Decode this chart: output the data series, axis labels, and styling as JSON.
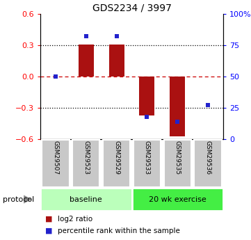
{
  "title": "GDS2234 / 3997",
  "samples": [
    "GSM29507",
    "GSM29523",
    "GSM29529",
    "GSM29533",
    "GSM29535",
    "GSM29536"
  ],
  "log2_ratios": [
    0.0,
    0.305,
    0.305,
    -0.37,
    -0.57,
    0.0
  ],
  "percentile_ranks": [
    50,
    82,
    82,
    18,
    14,
    27
  ],
  "ylim": [
    -0.6,
    0.6
  ],
  "yticks_left": [
    -0.6,
    -0.3,
    0.0,
    0.3,
    0.6
  ],
  "yticks_right_vals": [
    0,
    25,
    50,
    75,
    100
  ],
  "yticks_right_labels": [
    "0",
    "25",
    "50",
    "75",
    "100%"
  ],
  "hlines_dotted": [
    0.3,
    -0.3
  ],
  "hline_dashed": 0.0,
  "bar_color": "#AA1111",
  "dot_color": "#2222CC",
  "dashed_color": "#CC0000",
  "bg_color": "#FFFFFF",
  "protocol_groups": [
    {
      "label": "baseline",
      "start": 0,
      "end": 3,
      "color": "#BBFFBB"
    },
    {
      "label": "20 wk exercise",
      "start": 3,
      "end": 6,
      "color": "#44EE44"
    }
  ],
  "legend_items": [
    {
      "label": "log2 ratio",
      "color": "#AA1111"
    },
    {
      "label": "percentile rank within the sample",
      "color": "#2222CC"
    }
  ],
  "gsm_bg": "#C8C8C8",
  "gsm_sep": "#FFFFFF"
}
